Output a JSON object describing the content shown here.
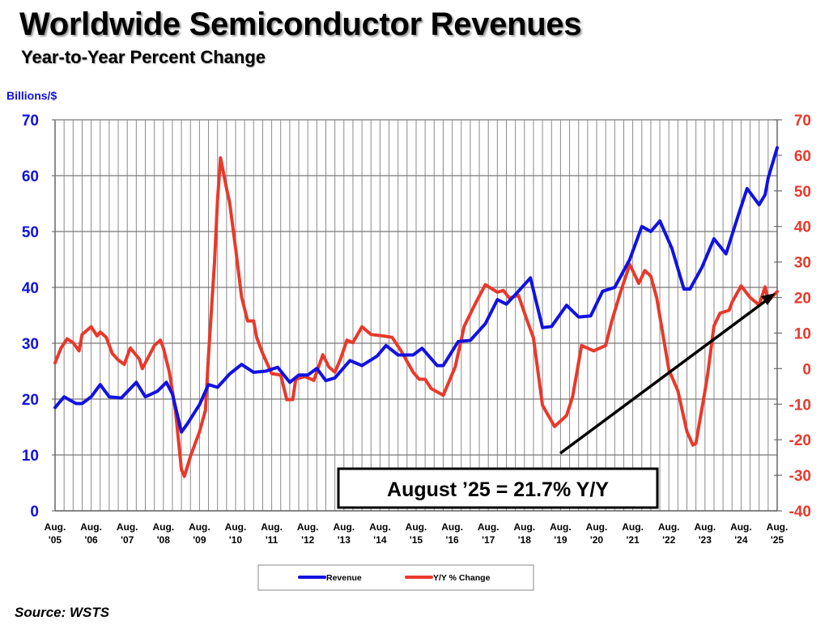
{
  "title": "Worldwide Semiconductor Revenues",
  "subtitle": "Year-to-Year Percent Change",
  "source": "Source: WSTS",
  "chart_data": {
    "type": "line",
    "title": "Worldwide Semiconductor Revenues",
    "subtitle": "Year-to-Year Percent Change",
    "ylabel": "Billions/$",
    "ylim": [
      0,
      70
    ],
    "y2lim": [
      -40,
      70
    ],
    "yticks": [
      "0",
      "10",
      "20",
      "30",
      "40",
      "50",
      "60",
      "70"
    ],
    "y2ticks": [
      "-40",
      "-30",
      "-20",
      "-10",
      "0",
      "10",
      "20",
      "30",
      "40",
      "50",
      "60",
      "70"
    ],
    "xticks": [
      {
        "top": "Aug.",
        "bottom": "'05"
      },
      {
        "top": "Aug.",
        "bottom": "'06"
      },
      {
        "top": "Aug.",
        "bottom": "'07"
      },
      {
        "top": "Aug.",
        "bottom": "'08"
      },
      {
        "top": "Aug.",
        "bottom": "'09"
      },
      {
        "top": "Aug.",
        "bottom": "'10"
      },
      {
        "top": "Aug.",
        "bottom": "'11"
      },
      {
        "top": "Aug.",
        "bottom": "'12"
      },
      {
        "top": "Aug.",
        "bottom": "'13"
      },
      {
        "top": "Aug.",
        "bottom": "'14"
      },
      {
        "top": "Aug.",
        "bottom": "'15"
      },
      {
        "top": "Aug.",
        "bottom": "'16"
      },
      {
        "top": "Aug.",
        "bottom": "'17"
      },
      {
        "top": "Aug.",
        "bottom": "'18"
      },
      {
        "top": "Aug.",
        "bottom": "'19"
      },
      {
        "top": "Aug.",
        "bottom": "'20"
      },
      {
        "top": "Aug.",
        "bottom": "'21"
      },
      {
        "top": "Aug.",
        "bottom": "'22"
      },
      {
        "top": "Aug.",
        "bottom": "'23"
      },
      {
        "top": "Aug.",
        "bottom": "'24"
      },
      {
        "top": "Aug.",
        "bottom": "'25"
      }
    ],
    "xlim": [
      "2005-08",
      "2025-08"
    ],
    "grid": true,
    "legend_position": "bottom",
    "annotation": "August ’25 = 21.7% Y/Y",
    "series": [
      {
        "name": "Revenue",
        "axis": "left",
        "color": "#1212e0",
        "points": [
          [
            "2005-08",
            18.5
          ],
          [
            "2005-11",
            20.4
          ],
          [
            "2006-03",
            19.2
          ],
          [
            "2006-05",
            19.2
          ],
          [
            "2006-08",
            20.4
          ],
          [
            "2006-11",
            22.6
          ],
          [
            "2007-02",
            20.4
          ],
          [
            "2007-06",
            20.2
          ],
          [
            "2007-11",
            23.0
          ],
          [
            "2008-02",
            20.4
          ],
          [
            "2008-06",
            21.4
          ],
          [
            "2008-09",
            23.0
          ],
          [
            "2008-11",
            20.9
          ],
          [
            "2009-02",
            14.1
          ],
          [
            "2009-04",
            15.6
          ],
          [
            "2009-08",
            19.0
          ],
          [
            "2009-11",
            22.6
          ],
          [
            "2010-02",
            22.1
          ],
          [
            "2010-06",
            24.5
          ],
          [
            "2010-10",
            26.2
          ],
          [
            "2011-02",
            24.8
          ],
          [
            "2011-06",
            25.0
          ],
          [
            "2011-10",
            25.7
          ],
          [
            "2012-02",
            23.0
          ],
          [
            "2012-05",
            24.3
          ],
          [
            "2012-08",
            24.3
          ],
          [
            "2012-11",
            25.5
          ],
          [
            "2013-02",
            23.3
          ],
          [
            "2013-05",
            23.8
          ],
          [
            "2013-10",
            26.9
          ],
          [
            "2014-02",
            26.0
          ],
          [
            "2014-07",
            27.7
          ],
          [
            "2014-10",
            29.6
          ],
          [
            "2015-02",
            27.9
          ],
          [
            "2015-07",
            27.9
          ],
          [
            "2015-10",
            29.1
          ],
          [
            "2016-03",
            26.0
          ],
          [
            "2016-05",
            26.0
          ],
          [
            "2016-10",
            30.3
          ],
          [
            "2017-02",
            30.5
          ],
          [
            "2017-07",
            33.5
          ],
          [
            "2017-11",
            37.8
          ],
          [
            "2018-02",
            37.0
          ],
          [
            "2018-06",
            39.3
          ],
          [
            "2018-10",
            41.7
          ],
          [
            "2019-02",
            32.8
          ],
          [
            "2019-05",
            33.0
          ],
          [
            "2019-10",
            36.8
          ],
          [
            "2020-02",
            34.7
          ],
          [
            "2020-06",
            34.9
          ],
          [
            "2020-10",
            39.3
          ],
          [
            "2021-02",
            40.0
          ],
          [
            "2021-07",
            45.0
          ],
          [
            "2021-11",
            50.9
          ],
          [
            "2022-02",
            50.0
          ],
          [
            "2022-05",
            51.9
          ],
          [
            "2022-09",
            47.0
          ],
          [
            "2023-01",
            39.7
          ],
          [
            "2023-03",
            39.7
          ],
          [
            "2023-07",
            43.6
          ],
          [
            "2023-11",
            48.7
          ],
          [
            "2024-03",
            46.0
          ],
          [
            "2024-07",
            52.8
          ],
          [
            "2024-10",
            57.7
          ],
          [
            "2025-02",
            54.8
          ],
          [
            "2025-04",
            56.6
          ],
          [
            "2025-05",
            59.6
          ],
          [
            "2025-08",
            65.0
          ]
        ]
      },
      {
        "name": "Y/Y % Change",
        "axis": "right",
        "color": "#e8392b",
        "points": [
          [
            "2005-08",
            1.6
          ],
          [
            "2005-10",
            5.8
          ],
          [
            "2005-12",
            8.4
          ],
          [
            "2006-02",
            7.3
          ],
          [
            "2006-04",
            5.0
          ],
          [
            "2006-05",
            9.6
          ],
          [
            "2006-08",
            11.8
          ],
          [
            "2006-10",
            9.2
          ],
          [
            "2006-11",
            10.3
          ],
          [
            "2007-01",
            8.8
          ],
          [
            "2007-03",
            4.3
          ],
          [
            "2007-05",
            2.4
          ],
          [
            "2007-07",
            1.2
          ],
          [
            "2007-09",
            5.8
          ],
          [
            "2007-12",
            2.7
          ],
          [
            "2008-01",
            0.0
          ],
          [
            "2008-05",
            6.5
          ],
          [
            "2008-07",
            8.0
          ],
          [
            "2008-08",
            5.8
          ],
          [
            "2008-10",
            -1.0
          ],
          [
            "2008-12",
            -11.7
          ],
          [
            "2009-02",
            -28.4
          ],
          [
            "2009-03",
            -30.3
          ],
          [
            "2009-05",
            -24.6
          ],
          [
            "2009-08",
            -17.8
          ],
          [
            "2009-10",
            -11.7
          ],
          [
            "2009-11",
            3.5
          ],
          [
            "2010-01",
            30.0
          ],
          [
            "2010-02",
            47.5
          ],
          [
            "2010-03",
            59.3
          ],
          [
            "2010-05",
            50.6
          ],
          [
            "2010-06",
            46.8
          ],
          [
            "2010-08",
            33.9
          ],
          [
            "2010-10",
            20.2
          ],
          [
            "2010-12",
            13.4
          ],
          [
            "2011-02",
            13.4
          ],
          [
            "2011-03",
            8.8
          ],
          [
            "2011-05",
            4.3
          ],
          [
            "2011-08",
            -1.4
          ],
          [
            "2011-11",
            -1.8
          ],
          [
            "2012-01",
            -8.7
          ],
          [
            "2012-03",
            -8.7
          ],
          [
            "2012-04",
            -3.0
          ],
          [
            "2012-07",
            -2.2
          ],
          [
            "2012-10",
            -3.3
          ],
          [
            "2013-01",
            3.9
          ],
          [
            "2013-03",
            0.5
          ],
          [
            "2013-05",
            -1.0
          ],
          [
            "2013-07",
            3.0
          ],
          [
            "2013-09",
            8.0
          ],
          [
            "2013-11",
            7.3
          ],
          [
            "2014-02",
            11.8
          ],
          [
            "2014-05",
            9.6
          ],
          [
            "2014-09",
            9.2
          ],
          [
            "2014-12",
            8.8
          ],
          [
            "2015-03",
            5.0
          ],
          [
            "2015-07",
            -1.0
          ],
          [
            "2015-09",
            -3.0
          ],
          [
            "2015-11",
            -3.0
          ],
          [
            "2016-01",
            -5.6
          ],
          [
            "2016-05",
            -7.5
          ],
          [
            "2016-09",
            0.5
          ],
          [
            "2016-12",
            12.0
          ],
          [
            "2017-04",
            18.8
          ],
          [
            "2017-07",
            23.6
          ],
          [
            "2017-11",
            21.5
          ],
          [
            "2018-01",
            22.0
          ],
          [
            "2018-03",
            19.8
          ],
          [
            "2018-06",
            20.6
          ],
          [
            "2018-09",
            13.3
          ],
          [
            "2018-11",
            8.7
          ],
          [
            "2019-02",
            -10.3
          ],
          [
            "2019-06",
            -16.3
          ],
          [
            "2019-10",
            -13.2
          ],
          [
            "2019-12",
            -7.9
          ],
          [
            "2020-03",
            6.5
          ],
          [
            "2020-07",
            5.0
          ],
          [
            "2020-11",
            6.5
          ],
          [
            "2021-01",
            13.3
          ],
          [
            "2021-04",
            21.7
          ],
          [
            "2021-07",
            29.3
          ],
          [
            "2021-10",
            24.0
          ],
          [
            "2021-12",
            27.6
          ],
          [
            "2022-02",
            26.0
          ],
          [
            "2022-04",
            19.8
          ],
          [
            "2022-08",
            -0.3
          ],
          [
            "2022-11",
            -6.3
          ],
          [
            "2023-02",
            -17.7
          ],
          [
            "2023-04",
            -21.5
          ],
          [
            "2023-05",
            -21.0
          ],
          [
            "2023-08",
            -6.3
          ],
          [
            "2023-09",
            -1.0
          ],
          [
            "2023-11",
            12.0
          ],
          [
            "2024-01",
            15.6
          ],
          [
            "2024-04",
            16.4
          ],
          [
            "2024-05",
            18.7
          ],
          [
            "2024-08",
            23.3
          ],
          [
            "2024-11",
            20.0
          ],
          [
            "2025-02",
            17.9
          ],
          [
            "2025-04",
            23.0
          ],
          [
            "2025-05",
            19.0
          ],
          [
            "2025-08",
            21.7
          ]
        ]
      }
    ]
  }
}
